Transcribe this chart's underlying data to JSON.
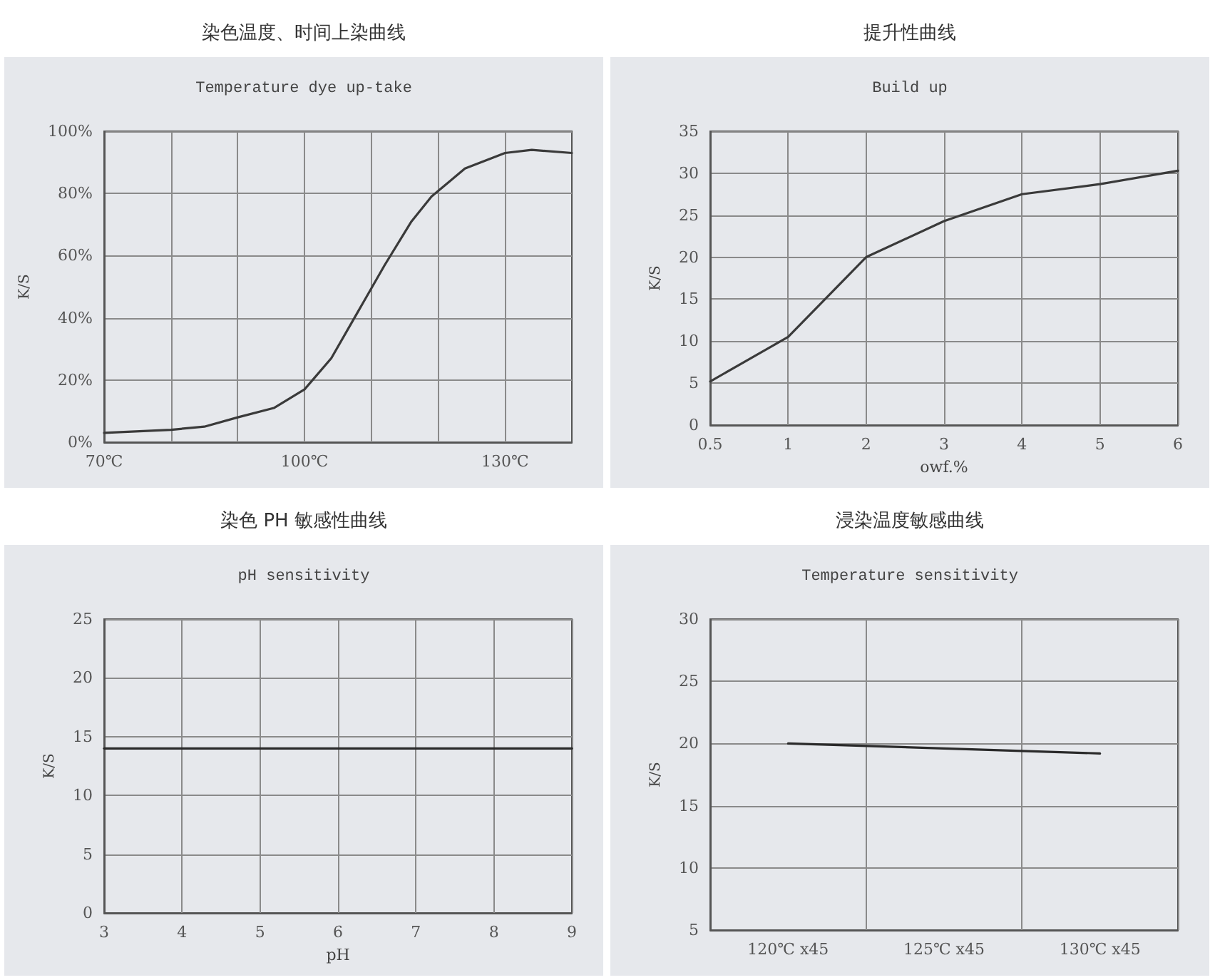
{
  "chart_data": [
    {
      "type": "line",
      "title": "染色温度、时间上染曲线",
      "subtitle": "Temperature dye up-take",
      "ylabel": "K/S",
      "x": [
        70,
        80,
        85,
        90,
        95.4,
        100,
        104,
        108,
        112,
        116,
        119,
        124,
        130,
        134,
        140
      ],
      "series": [
        {
          "color": "#3a3a3a",
          "values": [
            3,
            4,
            5,
            8,
            11,
            17,
            27,
            42,
            57,
            71,
            79,
            88,
            93,
            94,
            93
          ]
        }
      ],
      "xlim": [
        70,
        140
      ],
      "xticks": [
        {
          "value": 70,
          "label": "70℃"
        },
        {
          "value": 80,
          "label": null
        },
        {
          "value": 90,
          "label": null
        },
        {
          "value": 100,
          "label": "100℃"
        },
        {
          "value": 110,
          "label": null
        },
        {
          "value": 120,
          "label": null
        },
        {
          "value": 130,
          "label": "130℃"
        }
      ],
      "ylim": [
        0,
        100
      ],
      "yticks": [
        {
          "value": 0,
          "label": "0%"
        },
        {
          "value": 20,
          "label": "20%"
        },
        {
          "value": 40,
          "label": "40%"
        },
        {
          "value": 60,
          "label": "60%"
        },
        {
          "value": 80,
          "label": "80%"
        },
        {
          "value": 100,
          "label": "100%"
        }
      ],
      "grid": true
    },
    {
      "type": "line",
      "title": "提升性曲线",
      "subtitle": "Build up",
      "ylabel": "K/S",
      "xlabel": "owf.%",
      "categories": [
        "0.5",
        "1",
        "2",
        "3",
        "4",
        "5",
        "6"
      ],
      "series": [
        {
          "color": "#3a3a3a",
          "values": [
            5.2,
            10.5,
            20,
            24.3,
            27.5,
            28.7,
            30.3
          ]
        }
      ],
      "ylim": [
        0,
        35
      ],
      "yticks": [
        0,
        5,
        10,
        15,
        20,
        25,
        30,
        35
      ],
      "grid": true
    },
    {
      "type": "line",
      "title": "染色 PH 敏感性曲线",
      "subtitle": "pH sensitivity",
      "ylabel": "K/S",
      "xlabel": "pH",
      "x": [
        3,
        9
      ],
      "series": [
        {
          "color": "#2a2a2a",
          "values": [
            14,
            14
          ]
        }
      ],
      "xlim": [
        3,
        9
      ],
      "xticks": [
        3,
        4,
        5,
        6,
        7,
        8,
        9
      ],
      "ylim": [
        0,
        25
      ],
      "yticks": [
        0,
        5,
        10,
        15,
        20,
        25
      ],
      "grid": true
    },
    {
      "type": "line",
      "title": "浸染温度敏感曲线",
      "subtitle": "Temperature sensitivity",
      "ylabel": "K/S",
      "categories": [
        "120℃ x45",
        "125℃ x45",
        "130℃ x45"
      ],
      "series": [
        {
          "color": "#2a2a2a",
          "values": [
            20,
            19.6,
            19.2
          ]
        }
      ],
      "ylim": [
        5,
        30
      ],
      "yticks": [
        5,
        10,
        15,
        20,
        25,
        30
      ],
      "grid": true
    }
  ]
}
